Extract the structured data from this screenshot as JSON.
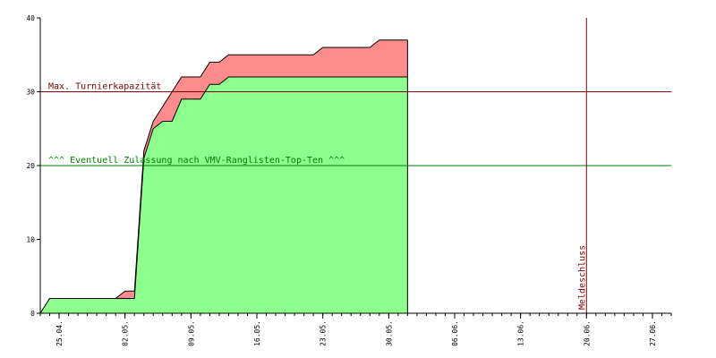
{
  "chart_data": {
    "type": "area",
    "x_ticks": [
      "25.04.",
      "02.05.",
      "09.05.",
      "16.05.",
      "23.05.",
      "30.05.",
      "06.06.",
      "13.06.",
      "20.06.",
      "27.06."
    ],
    "y_ticks": [
      "0",
      "10",
      "20",
      "30",
      "40"
    ],
    "ylim": [
      0,
      40
    ],
    "xlim_days": [
      0,
      67
    ],
    "first_tick_day": 2,
    "tick_interval_days": 7,
    "grid": false,
    "series": [
      {
        "color": "#ff8c8c",
        "x": [
          0,
          1,
          8,
          9,
          10,
          11,
          12,
          13,
          14,
          15,
          16,
          17,
          18,
          19,
          20,
          21,
          22,
          23,
          24,
          25,
          26,
          27,
          28,
          29,
          30,
          31,
          32,
          33,
          34,
          35,
          36,
          37,
          38,
          39
        ],
        "y": [
          0,
          2,
          2,
          3,
          3,
          22,
          26,
          28,
          30,
          32,
          32,
          32,
          34,
          34,
          35,
          35,
          35,
          35,
          35,
          35,
          35,
          35,
          35,
          35,
          36,
          36,
          36,
          36,
          36,
          36,
          37,
          37,
          37,
          37
        ]
      },
      {
        "color": "#8cff8c",
        "x": [
          0,
          1,
          8,
          9,
          10,
          11,
          12,
          13,
          14,
          15,
          16,
          17,
          18,
          19,
          20,
          21,
          22,
          23,
          24,
          25,
          26,
          27,
          28,
          29,
          30,
          31,
          32,
          33,
          34,
          35,
          36,
          37,
          38,
          39
        ],
        "y": [
          0,
          2,
          2,
          2,
          2,
          21,
          25,
          26,
          26,
          29,
          29,
          29,
          31,
          31,
          32,
          32,
          32,
          32,
          32,
          32,
          32,
          32,
          32,
          32,
          32,
          32,
          32,
          32,
          32,
          32,
          32,
          32,
          32,
          32
        ]
      }
    ],
    "hlines": [
      {
        "y": 30,
        "label": "Max. Turnierkapazität",
        "color": "#800000"
      },
      {
        "y": 20,
        "label": "^^^ Eventuell Zulassung nach VMV-Ranglisten-Top-Ten ^^^",
        "color": "#008000"
      }
    ],
    "vlines": [
      {
        "x": 58,
        "label": "Meldeschluss",
        "color": "#800000"
      }
    ]
  }
}
